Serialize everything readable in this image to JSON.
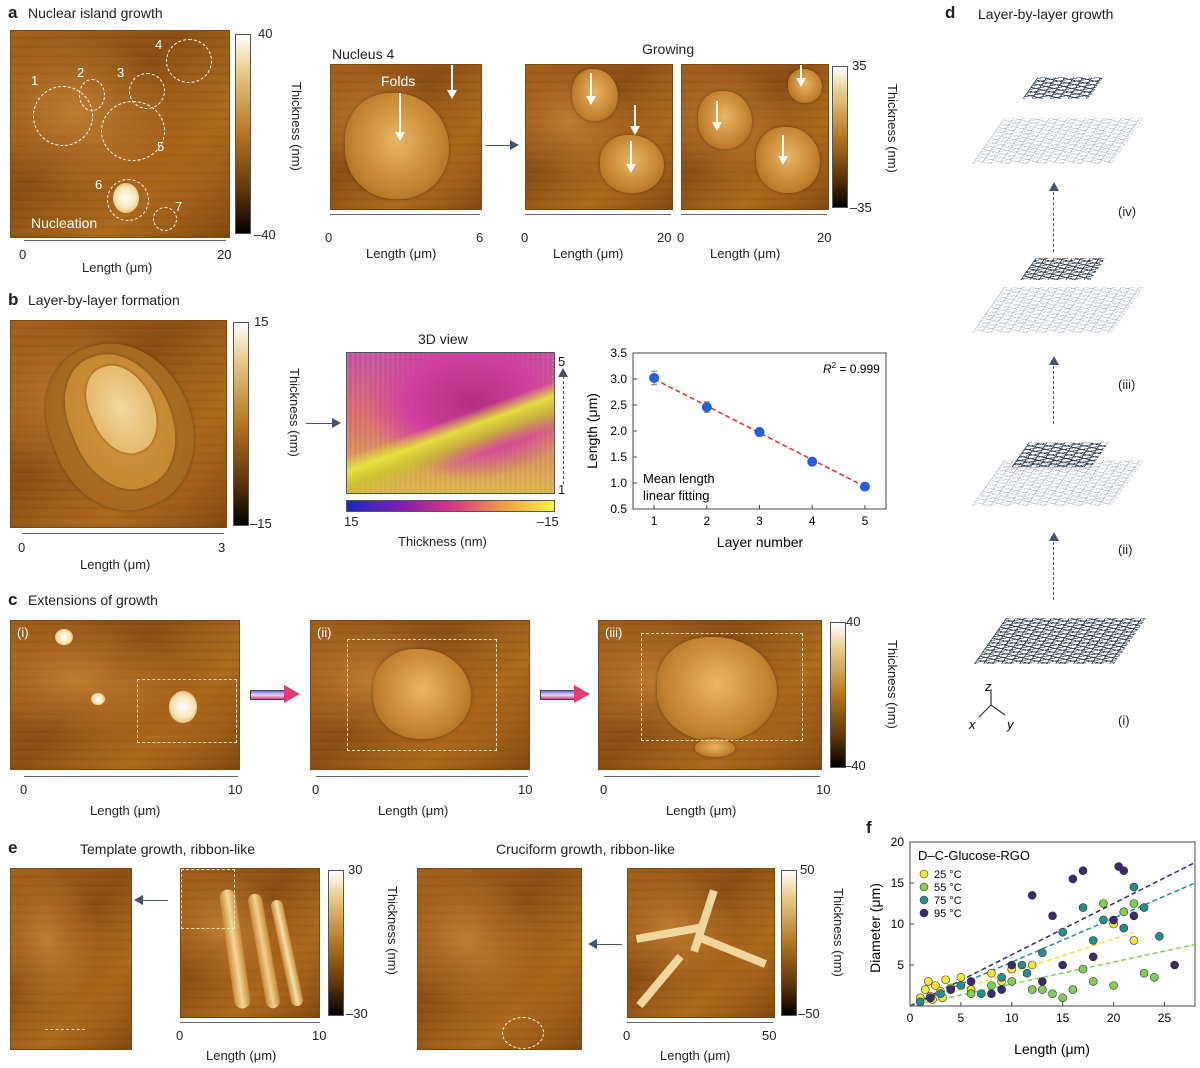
{
  "panel_a": {
    "letter": "a",
    "title": "Nuclear island growth",
    "nucleation_label": "Nucleation",
    "nucleus_numbers": [
      "1",
      "2",
      "3",
      "4",
      "5",
      "6",
      "7"
    ],
    "scale_left": {
      "start": "0",
      "end": "20",
      "label": "Length (μm)"
    },
    "colorbar": {
      "max": "40",
      "min": "–40",
      "label": "Thickness (nm)"
    },
    "nucleus4_title": "Nucleus 4",
    "folds_label": "Folds",
    "scale_mid": {
      "start": "0",
      "end": "6",
      "label": "Length (μm)"
    },
    "growing_title": "Growing",
    "scale_g1": {
      "start": "0",
      "end": "20",
      "label": "Length (μm)"
    },
    "scale_g2": {
      "start": "0",
      "end": "20",
      "label": "Length (μm)"
    },
    "colorbar2": {
      "max": "35",
      "min": "–35",
      "label": "Thickness (nm)"
    }
  },
  "panel_b": {
    "letter": "b",
    "title": "Layer-by-layer formation",
    "colorbar": {
      "max": "15",
      "min": "–15",
      "label": "Thickness (nm)"
    },
    "scale": {
      "start": "0",
      "end": "3",
      "label": "Length (μm)"
    },
    "view3d_title": "3D view",
    "view3d_scale": {
      "top": "5",
      "bottom": "1"
    },
    "view3d_colorbar": {
      "left": "15",
      "right": "–15",
      "label": "Thickness (nm)"
    }
  },
  "chart_data": {
    "type": "scatter",
    "xlabel": "Layer number",
    "ylabel": "Length (μm)",
    "x": [
      1,
      2,
      3,
      4,
      5
    ],
    "values": [
      3.02,
      2.46,
      1.98,
      1.41,
      0.93
    ],
    "errors": [
      0.13,
      0.1,
      0.08,
      0.07,
      0.06
    ],
    "xlim": [
      0.6,
      5.4
    ],
    "ylim": [
      0.5,
      3.5
    ],
    "xticks": [
      "1",
      "2",
      "3",
      "4",
      "5"
    ],
    "yticks": [
      "0.5",
      "1.0",
      "1.5",
      "2.0",
      "2.5",
      "3.0",
      "3.5"
    ],
    "r2_label": "R",
    "r2_sup": "2",
    "r2_value": " = 0.999",
    "fit_label_line1": "Mean length",
    "fit_label_line2": "linear fitting",
    "fit": {
      "x1": 1,
      "y1": 3.0,
      "x2": 5,
      "y2": 0.93
    },
    "point_color": "#1f5fe0",
    "fit_color": "#e03030"
  },
  "panel_c": {
    "letter": "c",
    "title": "Extensions of growth",
    "sub_i": "(i)",
    "sub_ii": "(ii)",
    "sub_iii": "(iii)",
    "scale1": {
      "start": "0",
      "end": "10",
      "label": "Length (μm)"
    },
    "scale2": {
      "start": "0",
      "end": "10",
      "label": "Length (μm)"
    },
    "scale3": {
      "start": "0",
      "end": "10",
      "label": "Length (μm)"
    },
    "colorbar": {
      "max": "40",
      "min": "–40",
      "label": "Thickness (nm)"
    }
  },
  "panel_d": {
    "letter": "d",
    "title": "Layer-by-layer growth",
    "steps": [
      "(iv)",
      "(iii)",
      "(ii)",
      "(i)"
    ],
    "axes": {
      "z": "z",
      "x": "x",
      "y": "y"
    }
  },
  "panel_e": {
    "letter": "e",
    "title_left": "Template growth, ribbon-like",
    "title_right": "Cruciform growth, ribbon-like",
    "scale_left": {
      "start": "0",
      "end": "10",
      "label": "Length (μm)"
    },
    "colorbar_left": {
      "max": "30",
      "min": "–30",
      "label": "Thickness (nm)"
    },
    "scale_right": {
      "start": "0",
      "end": "50",
      "label": "Length (μm)"
    },
    "colorbar_right": {
      "max": "50",
      "min": "–50",
      "label": "Thickness (nm)"
    }
  },
  "panel_f": {
    "letter": "f",
    "chart": {
      "type": "scatter",
      "title": "D–C-Glucose-RGO",
      "xlabel": "Length (μm)",
      "ylabel": "Diameter (μm)",
      "xlim": [
        0,
        28
      ],
      "ylim": [
        0,
        20
      ],
      "xticks": [
        "0",
        "5",
        "10",
        "15",
        "20",
        "25"
      ],
      "yticks": [
        "5",
        "10",
        "15",
        "20"
      ],
      "series": [
        {
          "name": "25 °C",
          "color": "#f4e632",
          "points": [
            [
              1.0,
              1.0
            ],
            [
              1.5,
              2.0
            ],
            [
              2.0,
              1.2
            ],
            [
              2.5,
              2.5
            ],
            [
              3.0,
              1.8
            ],
            [
              3.5,
              3.2
            ],
            [
              2.2,
              0.8
            ],
            [
              4.0,
              2.2
            ],
            [
              5.0,
              3.5
            ],
            [
              6.0,
              2.0
            ],
            [
              8.0,
              4.0
            ],
            [
              9.0,
              3.0
            ],
            [
              10.0,
              4.5
            ],
            [
              12.0,
              5.0
            ],
            [
              20.0,
              10.0
            ],
            [
              22.0,
              8.0
            ],
            [
              1.8,
              3.0
            ],
            [
              3.2,
              1.0
            ]
          ],
          "fit": [
            [
              0,
              0
            ],
            [
              22,
              9
            ]
          ]
        },
        {
          "name": "55 °C",
          "color": "#7cd250",
          "points": [
            [
              2.0,
              1.0
            ],
            [
              4.0,
              2.0
            ],
            [
              6.0,
              1.5
            ],
            [
              8.0,
              2.5
            ],
            [
              10.0,
              3.0
            ],
            [
              12.0,
              2.0
            ],
            [
              14.0,
              1.5
            ],
            [
              16.0,
              2.0
            ],
            [
              18.0,
              3.0
            ],
            [
              20.0,
              2.5
            ],
            [
              21.0,
              11.5
            ],
            [
              22.0,
              12.5
            ],
            [
              23.0,
              4.0
            ],
            [
              24.0,
              3.5
            ],
            [
              13.0,
              2.0
            ],
            [
              15.0,
              1.0
            ],
            [
              17.0,
              4.5
            ],
            [
              19.0,
              12.5
            ]
          ],
          "fit": [
            [
              0,
              0
            ],
            [
              28,
              7.5
            ]
          ]
        },
        {
          "name": "75 °C",
          "color": "#22908c",
          "points": [
            [
              1.0,
              0.5
            ],
            [
              3.0,
              1.5
            ],
            [
              5.0,
              2.5
            ],
            [
              7.0,
              1.5
            ],
            [
              9.0,
              3.5
            ],
            [
              11.0,
              5.0
            ],
            [
              13.0,
              6.5
            ],
            [
              15.0,
              9.0
            ],
            [
              17.0,
              12.0
            ],
            [
              19.0,
              10.5
            ],
            [
              21.0,
              9.5
            ],
            [
              22.0,
              14.5
            ],
            [
              23.0,
              12.0
            ],
            [
              24.5,
              8.5
            ],
            [
              11.5,
              4.0
            ],
            [
              18.0,
              8.0
            ]
          ],
          "fit": [
            [
              0,
              0
            ],
            [
              28,
              15
            ]
          ]
        },
        {
          "name": "95 °C",
          "color": "#3b2a6e",
          "points": [
            [
              2.0,
              1.0
            ],
            [
              4.0,
              2.0
            ],
            [
              6.0,
              3.0
            ],
            [
              8.0,
              1.5
            ],
            [
              10.0,
              5.0
            ],
            [
              12.0,
              13.5
            ],
            [
              14.0,
              11.0
            ],
            [
              15.0,
              5.0
            ],
            [
              16.0,
              15.5
            ],
            [
              17.0,
              16.5
            ],
            [
              18.0,
              6.0
            ],
            [
              20.0,
              10.5
            ],
            [
              20.5,
              17.0
            ],
            [
              21.0,
              16.5
            ],
            [
              22.0,
              11.0
            ],
            [
              26.0,
              5.0
            ],
            [
              9.0,
              2.0
            ],
            [
              13.0,
              3.0
            ]
          ],
          "fit": [
            [
              0,
              0
            ],
            [
              28,
              17.5
            ]
          ]
        }
      ]
    }
  }
}
